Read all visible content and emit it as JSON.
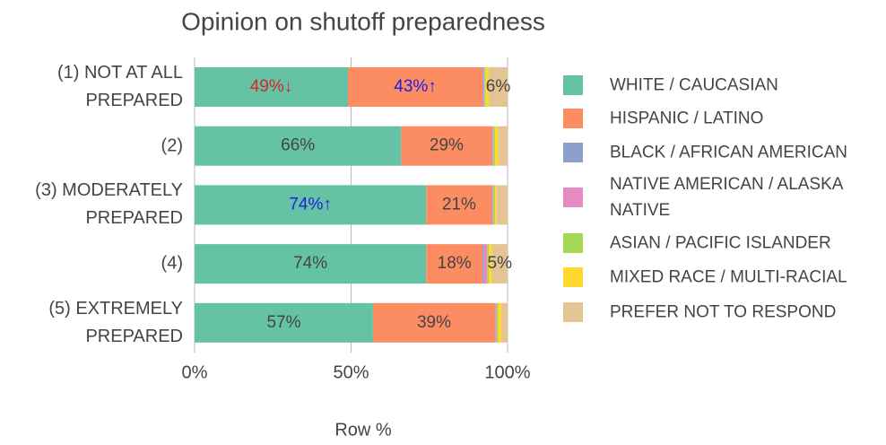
{
  "chart_data": {
    "type": "stacked-barh",
    "title": "Opinion on shutoff preparedness",
    "xlabel": "Row %",
    "categories": [
      "(1) NOT AT ALL PREPARED",
      "(2)",
      "(3) MODERATELY PREPARED",
      "(4)",
      "(5) EXTREMELY PREPARED"
    ],
    "series": [
      {
        "name": "WHITE / CAUCASIAN",
        "color": "#66c2a5",
        "values": [
          49,
          66,
          74,
          74,
          57
        ],
        "value_labels": [
          "49%↓",
          "66%",
          "74%↑",
          "74%",
          "57%"
        ],
        "label_colors": [
          "#d62728",
          null,
          "#1f1fe0",
          null,
          null
        ]
      },
      {
        "name": "HISPANIC / LATINO",
        "color": "#fc8d62",
        "values": [
          43,
          29,
          21,
          18,
          39
        ],
        "value_labels": [
          "43%↑",
          "29%",
          "21%",
          "18%",
          "39%"
        ],
        "label_colors": [
          "#1f1fe0",
          null,
          null,
          null,
          null
        ]
      },
      {
        "name": "BLACK / AFRICAN AMERICAN",
        "color": "#8da0cb",
        "values": [
          0.3,
          0.2,
          0.2,
          0.5,
          0.2
        ]
      },
      {
        "name": "NATIVE AMERICAN / ALASKA NATIVE",
        "color": "#e78ac3",
        "values": [
          0.3,
          0.3,
          0.3,
          1,
          0.3
        ]
      },
      {
        "name": "ASIAN / PACIFIC ISLANDER",
        "color": "#a6d854",
        "values": [
          0.4,
          0.5,
          0.5,
          0.5,
          0.5
        ]
      },
      {
        "name": "MIXED RACE / MULTI-RACIAL",
        "color": "#ffd92f",
        "values": [
          1,
          1,
          0.5,
          1,
          1
        ]
      },
      {
        "name": "PREFER NOT TO RESPOND",
        "color": "#e5c494",
        "values": [
          6,
          3,
          3.5,
          5,
          2
        ],
        "value_labels": [
          "6%",
          null,
          null,
          "5%",
          null
        ]
      }
    ],
    "xlim": [
      0,
      100
    ],
    "xticks": [
      {
        "value": 0,
        "label": "0%"
      },
      {
        "value": 50,
        "label": "50%"
      },
      {
        "value": 100,
        "label": "100%"
      }
    ],
    "grid": true,
    "legend": "right"
  }
}
